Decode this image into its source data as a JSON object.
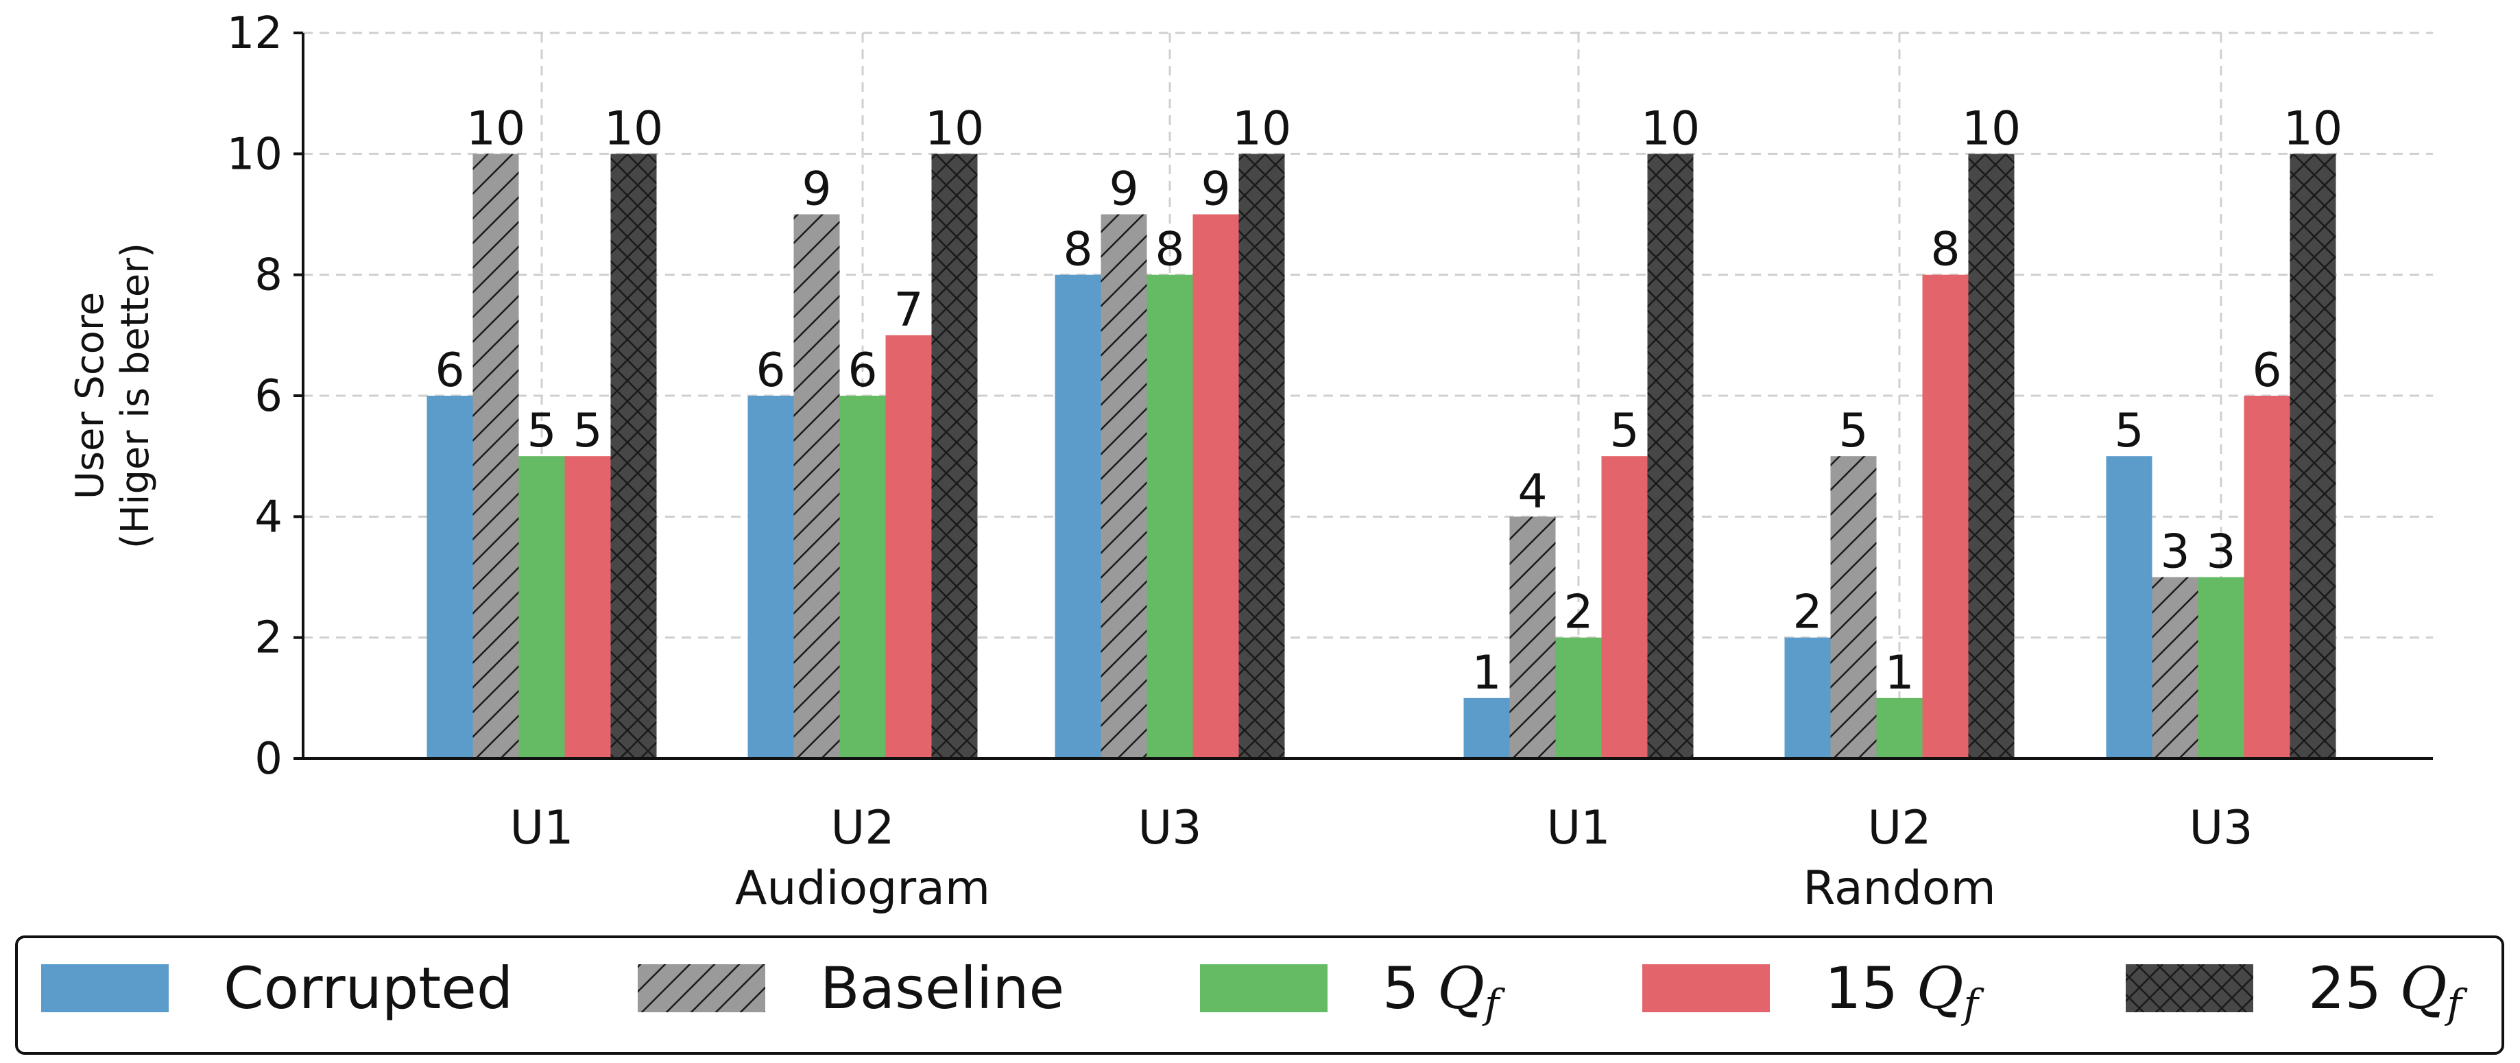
{
  "chart_data": {
    "type": "bar",
    "ylabel": [
      "User Score",
      "(Higer is better)"
    ],
    "ylim": [
      0,
      12
    ],
    "yticks": [
      0,
      2,
      4,
      6,
      8,
      10,
      12
    ],
    "grid": true,
    "legend_position": "bottom",
    "groups": [
      {
        "name": "Audiogram",
        "categories": [
          "U1",
          "U2",
          "U3"
        ]
      },
      {
        "name": "Random",
        "categories": [
          "U1",
          "U2",
          "U3"
        ]
      }
    ],
    "series": [
      {
        "name": "Corrupted",
        "legend_prefix": "",
        "legend_var": "",
        "legend_sub": "",
        "color": "#5b9ccb",
        "pattern": "none",
        "values": [
          6,
          6,
          8,
          1,
          2,
          5
        ]
      },
      {
        "name": "Baseline",
        "legend_prefix": "",
        "legend_var": "",
        "legend_sub": "",
        "color": "#9a9a9a",
        "pattern": "diagonal",
        "values": [
          10,
          9,
          9,
          4,
          5,
          3
        ]
      },
      {
        "name": "5 Qf",
        "legend_prefix": "5 ",
        "legend_var": "Q",
        "legend_sub": "f",
        "color": "#64bb64",
        "pattern": "none",
        "values": [
          5,
          6,
          8,
          2,
          1,
          3
        ]
      },
      {
        "name": "15 Qf",
        "legend_prefix": "15 ",
        "legend_var": "Q",
        "legend_sub": "f",
        "color": "#e3646a",
        "pattern": "none",
        "values": [
          5,
          7,
          9,
          5,
          8,
          6
        ]
      },
      {
        "name": "25 Qf",
        "legend_prefix": "25 ",
        "legend_var": "Q",
        "legend_sub": "f",
        "color": "#474747",
        "pattern": "cross",
        "values": [
          10,
          10,
          10,
          10,
          10,
          10
        ]
      }
    ]
  }
}
